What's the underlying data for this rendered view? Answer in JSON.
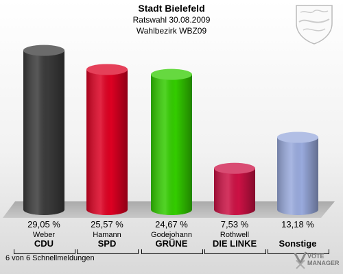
{
  "header": {
    "title": "Stadt Bielefeld",
    "subtitle1": "Ratswahl 30.08.2009",
    "subtitle2": "Wahlbezirk WBZ09"
  },
  "chart_data": {
    "type": "bar",
    "categories": [
      "CDU",
      "SPD",
      "GRÜNE",
      "DIE LINKE",
      "Sonstige"
    ],
    "candidates": [
      "Weber",
      "Hamann",
      "Godejohann",
      "Rothwell",
      ""
    ],
    "values": [
      29.05,
      25.57,
      24.67,
      7.53,
      13.18
    ],
    "value_labels": [
      "29,05 %",
      "25,57 %",
      "24,67 %",
      "7,53 %",
      "13,18 %"
    ],
    "colors": [
      "#3a3a3a",
      "#dd0022",
      "#33cc00",
      "#cc1144",
      "#99aadd"
    ],
    "ylim": [
      0,
      30
    ],
    "grid": false
  },
  "footer": {
    "text": "6 von 6 Schnellmeldungen"
  },
  "logo": {
    "line1": "VOTE",
    "line2": "MANAGER"
  }
}
